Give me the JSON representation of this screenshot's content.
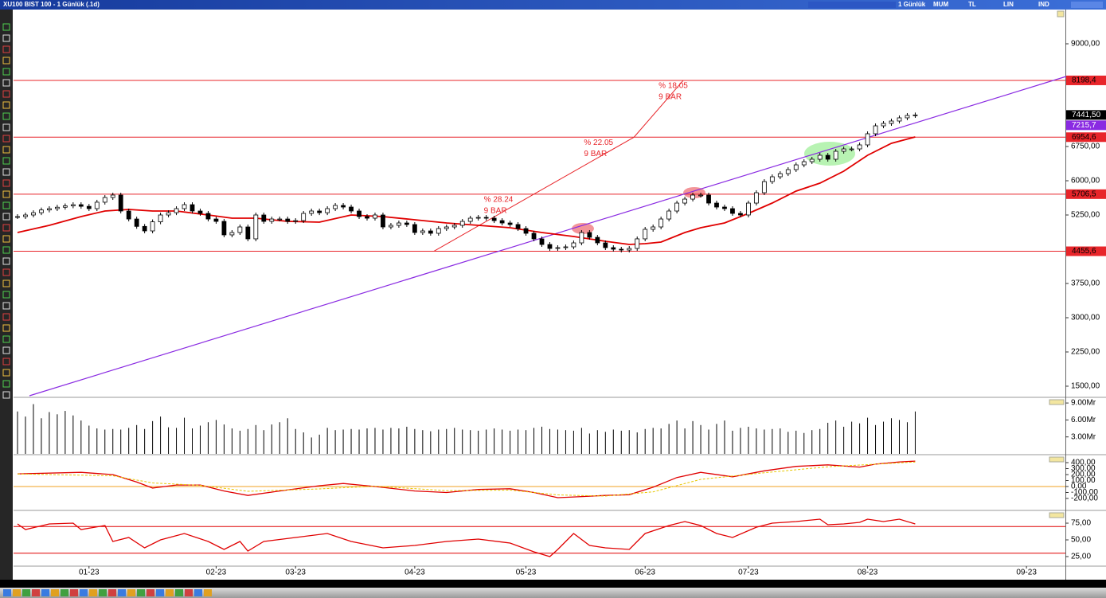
{
  "window": {
    "title": "XU100 BIST 100 - 1 Günlük (.1d)",
    "toolbar": [
      "1 Günlük",
      "MUM",
      "TL",
      "LIN",
      "IND"
    ]
  },
  "chart_data": [
    {
      "type": "candlestick",
      "values": [
        5215,
        5250,
        5300,
        5360,
        5389,
        5420,
        5450,
        5476,
        5440,
        5389,
        5530,
        5633,
        5686,
        5337,
        5162,
        5000,
        4901,
        5100,
        5250,
        5300,
        5389,
        5476,
        5337,
        5285,
        5162,
        5110,
        4814,
        4866,
        4988,
        4727,
        5250,
        5110,
        5162,
        5162,
        5110,
        5127,
        5285,
        5337,
        5300,
        5389,
        5459,
        5424,
        5337,
        5215,
        5180,
        5250,
        4988,
        5023,
        5075,
        5041,
        4866,
        4901,
        4849,
        4953,
        4988,
        5023,
        5110,
        5180,
        5197,
        5180,
        5127,
        5075,
        5041,
        4953,
        4849,
        4727,
        4604,
        4517,
        4535,
        4552,
        4639,
        4866,
        4761,
        4639,
        4535,
        4500,
        4482,
        4517,
        4727,
        4936,
        4988,
        5162,
        5337,
        5511,
        5598,
        5686,
        5686,
        5511,
        5424,
        5389,
        5285,
        5250,
        5511,
        5738,
        5982,
        6087,
        6156,
        6244,
        6348,
        6418,
        6471,
        6558,
        6471,
        6645,
        6697,
        6697,
        6785,
        7029,
        7203,
        7256,
        7308,
        7378,
        7430,
        7441.5
      ],
      "xlim": [
        0,
        132
      ],
      "xticks": [
        {
          "value": 9,
          "label": "01-23"
        },
        {
          "value": 25,
          "label": "02-23"
        },
        {
          "value": 35,
          "label": "03-23"
        },
        {
          "value": 50,
          "label": "04-23"
        },
        {
          "value": 64,
          "label": "05-23"
        },
        {
          "value": 79,
          "label": "06-23"
        },
        {
          "value": 92,
          "label": "07-23"
        },
        {
          "value": 107,
          "label": "08-23"
        },
        {
          "value": 127,
          "label": "09-23"
        }
      ],
      "ylim": [
        1273,
        9750
      ],
      "yticks": [
        {
          "value": 9000,
          "label": "9000,00"
        },
        {
          "value": 6750,
          "label": "6750,00"
        },
        {
          "value": 6000,
          "label": "6000,00"
        },
        {
          "value": 5250,
          "label": "5250,00"
        },
        {
          "value": 3750,
          "label": "3750,00"
        },
        {
          "value": 3000,
          "label": "3000,00"
        },
        {
          "value": 2250,
          "label": "2250,00"
        },
        {
          "value": 1500,
          "label": "1500,00"
        }
      ],
      "last_price": {
        "value": 7441.5,
        "label": "7441,50"
      },
      "ma": {
        "color": "#e00000",
        "x": [
          0,
          4,
          8,
          11,
          14,
          17,
          20,
          24,
          27,
          30,
          34,
          38,
          42,
          46,
          50,
          54,
          58,
          62,
          66,
          70,
          74,
          77,
          79,
          81,
          84,
          86,
          89,
          92,
          95,
          98,
          101,
          104,
          107,
          110,
          113
        ],
        "values": [
          4866,
          5023,
          5215,
          5337,
          5372,
          5337,
          5337,
          5250,
          5180,
          5180,
          5110,
          5093,
          5250,
          5215,
          5145,
          5075,
          5023,
          4971,
          4866,
          4779,
          4674,
          4604,
          4622,
          4657,
          4866,
          4971,
          5075,
          5285,
          5511,
          5773,
          5947,
          6209,
          6558,
          6820,
          6959
        ]
      },
      "levels": {
        "color": "#e8252a",
        "items": [
          {
            "value": 8198.4,
            "label": "8198,4"
          },
          {
            "value": 6954.6,
            "label": "6954,6"
          },
          {
            "value": 5706.5,
            "label": "5706,5"
          },
          {
            "value": 4455.6,
            "label": "4455,6"
          }
        ]
      },
      "trendline": {
        "color": "#8a2be2",
        "x": [
          1.5,
          132
        ],
        "values": [
          1290,
          8285
        ],
        "label": {
          "value": 7215.7,
          "label": "7215,7"
        }
      },
      "projections": [
        {
          "text": "% 28.24",
          "bars": "9 BAR",
          "x": [
            52.4,
            65
          ],
          "from_level": 3,
          "to_level": 2
        },
        {
          "text": "% 22.05",
          "bars": "9 BAR",
          "x": [
            65,
            77.6
          ],
          "from_level": 2,
          "to_level": 1
        },
        {
          "text": "% 18.05",
          "bars": "9 BAR",
          "x": [
            77.6,
            83.8
          ],
          "from_level": 1,
          "to_level": 0
        }
      ]
    },
    {
      "type": "bar",
      "color": "#000000",
      "values": [
        7.5,
        6.6,
        8.8,
        6.3,
        7.4,
        7.0,
        7.6,
        6.8,
        5.9,
        5.0,
        4.5,
        4.3,
        4.4,
        4.3,
        4.6,
        5.1,
        4.4,
        5.8,
        6.6,
        4.7,
        4.6,
        6.4,
        4.5,
        5.0,
        5.6,
        6.0,
        5.2,
        4.5,
        4.1,
        4.4,
        5.1,
        4.2,
        5.2,
        5.6,
        6.3,
        4.4,
        3.8,
        2.9,
        3.4,
        4.6,
        4.2,
        4.3,
        4.4,
        4.3,
        4.5,
        4.6,
        4.3,
        4.6,
        4.5,
        4.8,
        4.4,
        4.2,
        4.0,
        4.3,
        4.4,
        4.6,
        4.3,
        4.2,
        4.1,
        4.3,
        4.5,
        4.3,
        4.1,
        4.3,
        4.2,
        4.6,
        4.8,
        4.4,
        4.3,
        4.2,
        4.1,
        4.6,
        3.6,
        4.2,
        3.9,
        4.3,
        4.1,
        4.2,
        3.8,
        4.4,
        4.6,
        4.5,
        5.3,
        5.9,
        4.5,
        5.8,
        5.1,
        4.3,
        5.3,
        5.9,
        4.1,
        4.6,
        4.8,
        4.5,
        4.3,
        4.4,
        4.5,
        3.9,
        4.1,
        3.7,
        4.2,
        4.4,
        5.5,
        5.9,
        4.8,
        5.7,
        5.4,
        6.4,
        5.1,
        5.7,
        6.3,
        6.0,
        5.6,
        7.5
      ],
      "ylim": [
        0,
        9.86
      ],
      "yticks": [
        {
          "value": 9,
          "label": "9.00Mr"
        },
        {
          "value": 6,
          "label": "6.00Mr"
        },
        {
          "value": 3,
          "label": "3.00Mr"
        }
      ]
    },
    {
      "type": "line",
      "series": [
        {
          "color": "#e00000",
          "x": [
            0,
            8,
            12,
            15,
            17,
            20,
            23,
            26,
            29,
            33,
            38,
            41,
            45,
            50,
            54,
            58,
            62,
            65,
            68,
            70,
            74,
            77,
            80,
            83,
            86,
            90,
            94,
            98,
            102,
            106,
            108,
            111,
            113
          ],
          "values": [
            212.5,
            237.5,
            200,
            75,
            -25,
            25,
            25,
            -75,
            -150,
            -75,
            12.5,
            50,
            0,
            -75,
            -100,
            -50,
            -37.5,
            -100,
            -187.5,
            -175,
            -150,
            -137.5,
            -12.5,
            150,
            237.5,
            162.5,
            262.5,
            337.5,
            362.5,
            325,
            375,
            412.5,
            425
          ]
        },
        {
          "color": "#e8c800",
          "dash": true,
          "x": [
            0,
            12,
            17,
            23,
            29,
            38,
            45,
            54,
            62,
            68,
            74,
            80,
            86,
            94,
            102,
            113
          ],
          "values": [
            210,
            180,
            60,
            20,
            -80,
            -40,
            5,
            -70,
            -60,
            -140,
            -160,
            -90,
            120,
            230,
            330,
            410
          ]
        }
      ],
      "hline": {
        "value": 0,
        "color": "#f0a020"
      },
      "ylim": [
        -387,
        520
      ],
      "yticks": [
        {
          "value": 400,
          "label": "400,00"
        },
        {
          "value": 300,
          "label": "300,00"
        },
        {
          "value": 200,
          "label": "200,00"
        },
        {
          "value": 100,
          "label": "100,00"
        },
        {
          "value": 0,
          "label": "0,00"
        },
        {
          "value": -100,
          "label": "-100,00"
        },
        {
          "value": -200,
          "label": "-200,00"
        }
      ]
    },
    {
      "type": "line",
      "series": [
        {
          "color": "#e00000",
          "x": [
            0,
            1,
            4,
            7,
            8,
            11,
            12,
            14,
            16,
            18,
            21,
            24,
            26,
            28,
            29,
            31,
            35,
            39,
            42,
            46,
            50,
            54,
            58,
            62,
            65,
            67,
            68,
            70,
            72,
            74,
            77,
            79,
            82,
            84,
            86,
            88,
            90,
            93,
            95,
            98,
            101,
            102,
            104,
            106,
            107,
            109,
            111,
            113
          ],
          "values": [
            73.8,
            65.5,
            73.8,
            75,
            65.5,
            71.4,
            47.6,
            53.6,
            38.1,
            50,
            59.5,
            47.6,
            35.7,
            47.6,
            33.3,
            47.6,
            53.6,
            59.5,
            47.6,
            38.1,
            41.7,
            47.6,
            51.2,
            45.2,
            32.1,
            25,
            35.7,
            59.5,
            41.7,
            38.1,
            35.7,
            59.5,
            71.4,
            77.4,
            71.4,
            59.5,
            53.6,
            69,
            75,
            77.4,
            81,
            72.6,
            73.8,
            76.2,
            81,
            77.4,
            81,
            73.8
          ]
        }
      ],
      "hlines": {
        "values": [
          70,
          30
        ],
        "color": "#e00000"
      },
      "ylim": [
        11.9,
        92.9
      ],
      "yticks": [
        {
          "value": 75,
          "label": "75,00"
        },
        {
          "value": 50,
          "label": "50,00"
        },
        {
          "value": 25,
          "label": "25,00"
        }
      ]
    }
  ]
}
